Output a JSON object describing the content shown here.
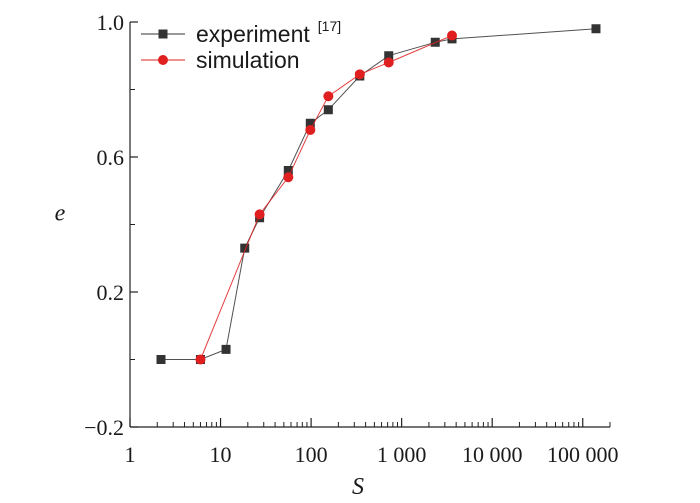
{
  "chart_data": {
    "type": "line",
    "xlabel": "S",
    "ylabel": "e",
    "xscale": "log",
    "xlim": [
      1,
      200000
    ],
    "ylim": [
      -0.2,
      1.0
    ],
    "grid": false,
    "legend_position": "top-left",
    "x_ticks": [
      1,
      10,
      100,
      1000,
      10000,
      100000
    ],
    "x_tick_labels": [
      "1",
      "10",
      "100",
      "1 000",
      "10 000",
      "100 000"
    ],
    "y_ticks": [
      -0.2,
      0.2,
      0.6,
      1.0
    ],
    "y_tick_labels": [
      "−0.2",
      "0.2",
      "0.6",
      "1.0"
    ],
    "series": [
      {
        "name": "experiment",
        "name_sup": "[17]",
        "color": "#333333",
        "marker": "square",
        "x": [
          2.2,
          6,
          11.5,
          18.5,
          27,
          56,
          98,
          155,
          345,
          720,
          2350,
          3600,
          140000
        ],
        "y": [
          0.0,
          0.0,
          0.03,
          0.33,
          0.42,
          0.56,
          0.7,
          0.74,
          0.84,
          0.9,
          0.94,
          0.95,
          0.98
        ]
      },
      {
        "name": "simulation",
        "color": "#e02020",
        "marker": "circle",
        "x": [
          6,
          27,
          56,
          98,
          155,
          345,
          720,
          3600
        ],
        "y": [
          0.0,
          0.43,
          0.54,
          0.68,
          0.78,
          0.845,
          0.88,
          0.96
        ]
      }
    ]
  }
}
